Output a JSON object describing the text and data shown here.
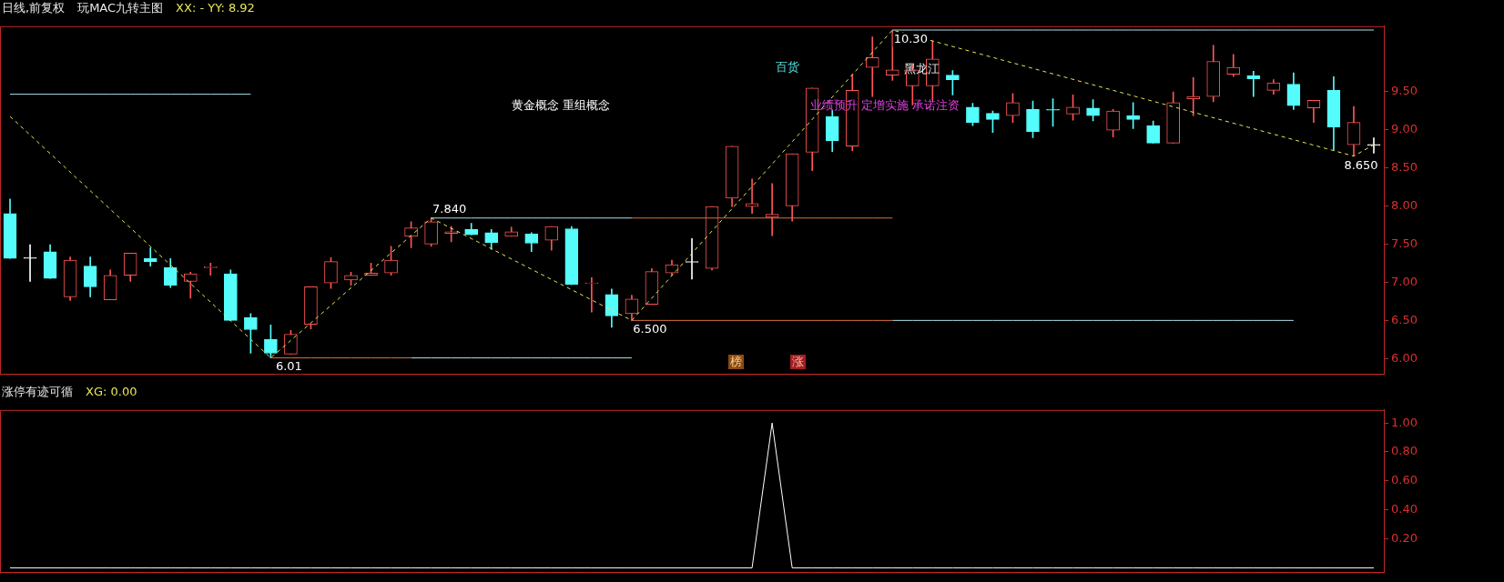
{
  "chart_data": [
    {
      "type": "candlestick",
      "title": "日线,前复权",
      "subtitle": "玩MAC九转主图",
      "annotations": [
        "XX: - YY: 8.92",
        "百货",
        "黄金概念 重组概念",
        "黑龙江",
        "业绩预升 定增实施 承诺注资",
        "榜",
        "涨",
        {
          "text": "10.30",
          "y": 10.3
        },
        {
          "text": "7.840",
          "y": 7.84
        },
        {
          "text": "6.01",
          "y": 6.01
        },
        {
          "text": "6.500",
          "y": 6.5
        },
        {
          "text": "8.650",
          "y": 8.65
        }
      ],
      "categories": [
        null,
        null,
        null,
        null,
        null,
        null,
        null,
        null,
        null,
        null,
        null,
        null,
        null,
        null,
        null,
        null,
        null,
        null,
        null,
        null,
        null,
        null,
        null,
        null,
        null,
        null,
        null,
        null,
        null,
        null,
        null,
        null,
        null,
        null,
        null,
        null,
        null,
        null,
        null,
        null,
        null,
        null,
        null,
        null,
        null,
        null,
        null,
        null,
        null,
        null,
        null,
        null,
        null,
        null,
        null,
        null,
        null,
        null,
        null,
        null,
        null,
        null,
        null,
        null,
        null,
        null,
        null,
        null,
        null
      ],
      "ohlc": [
        [
          7.9,
          8.09,
          7.31,
          7.31
        ],
        [
          7.31,
          7.49,
          7.01,
          7.31
        ],
        [
          7.4,
          7.49,
          7.05,
          7.05
        ],
        [
          6.81,
          7.33,
          6.76,
          7.29
        ],
        [
          7.21,
          7.33,
          6.81,
          6.94
        ],
        [
          6.77,
          7.16,
          6.77,
          7.09
        ],
        [
          7.09,
          7.38,
          7.01,
          7.38
        ],
        [
          7.31,
          7.45,
          7.21,
          7.27
        ],
        [
          7.19,
          7.31,
          6.93,
          6.96
        ],
        [
          7.01,
          7.13,
          6.79,
          7.11
        ],
        [
          7.19,
          7.25,
          7.09,
          7.2
        ],
        [
          7.11,
          7.16,
          6.5,
          6.5
        ],
        [
          6.54,
          6.59,
          6.07,
          6.38
        ],
        [
          6.25,
          6.44,
          6.01,
          6.07
        ],
        [
          6.06,
          6.37,
          6.06,
          6.32
        ],
        [
          6.45,
          6.94,
          6.39,
          6.94
        ],
        [
          6.99,
          7.32,
          6.92,
          7.27
        ],
        [
          7.03,
          7.13,
          6.96,
          7.09
        ],
        [
          7.09,
          7.25,
          7.09,
          7.12
        ],
        [
          7.12,
          7.47,
          7.09,
          7.29
        ],
        [
          7.6,
          7.79,
          7.45,
          7.71
        ],
        [
          7.5,
          7.84,
          7.47,
          7.79
        ],
        [
          7.64,
          7.73,
          7.53,
          7.66
        ],
        [
          7.69,
          7.77,
          7.62,
          7.62
        ],
        [
          7.65,
          7.69,
          7.43,
          7.52
        ],
        [
          7.6,
          7.72,
          7.6,
          7.66
        ],
        [
          7.63,
          7.65,
          7.4,
          7.51
        ],
        [
          7.55,
          7.73,
          7.42,
          7.73
        ],
        [
          7.7,
          7.73,
          6.97,
          6.97
        ],
        [
          6.98,
          7.06,
          6.61,
          6.99
        ],
        [
          6.84,
          6.91,
          6.41,
          6.56
        ],
        [
          6.59,
          6.83,
          6.5,
          6.78
        ],
        [
          6.71,
          7.18,
          6.71,
          7.14
        ],
        [
          7.12,
          7.29,
          7.09,
          7.23
        ],
        [
          7.26,
          7.57,
          7.04,
          7.26
        ],
        [
          7.18,
          7.99,
          7.16,
          7.99
        ],
        [
          8.1,
          8.78,
          7.99,
          8.78
        ],
        [
          7.99,
          8.35,
          7.9,
          8.03
        ],
        [
          7.85,
          8.29,
          7.61,
          7.89
        ],
        [
          8.0,
          8.68,
          7.8,
          8.68
        ],
        [
          8.7,
          9.54,
          8.46,
          9.54
        ],
        [
          9.17,
          9.25,
          8.71,
          8.85
        ],
        [
          8.78,
          9.72,
          8.72,
          9.51
        ],
        [
          9.81,
          10.21,
          9.43,
          9.94
        ],
        [
          9.71,
          10.3,
          9.64,
          9.78
        ],
        [
          9.57,
          9.84,
          9.32,
          9.78
        ],
        [
          9.57,
          10.16,
          9.38,
          9.92
        ],
        [
          9.71,
          9.77,
          9.45,
          9.65
        ],
        [
          9.29,
          9.34,
          9.05,
          9.09
        ],
        [
          9.21,
          9.24,
          8.96,
          9.13
        ],
        [
          9.18,
          9.47,
          9.09,
          9.35
        ],
        [
          9.26,
          9.37,
          8.89,
          8.97
        ],
        [
          9.26,
          9.4,
          9.04,
          9.25
        ],
        [
          9.2,
          9.45,
          9.12,
          9.29
        ],
        [
          9.28,
          9.39,
          9.11,
          9.18
        ],
        [
          8.99,
          9.26,
          8.9,
          9.24
        ],
        [
          9.18,
          9.35,
          9.01,
          9.13
        ],
        [
          9.05,
          9.11,
          8.82,
          8.82
        ],
        [
          8.82,
          9.49,
          8.82,
          9.35
        ],
        [
          9.4,
          9.68,
          9.18,
          9.43
        ],
        [
          9.43,
          10.1,
          9.36,
          9.89
        ],
        [
          9.72,
          9.98,
          9.69,
          9.81
        ],
        [
          9.7,
          9.76,
          9.43,
          9.66
        ],
        [
          9.51,
          9.65,
          9.46,
          9.61
        ],
        [
          9.59,
          9.74,
          9.26,
          9.31
        ],
        [
          9.28,
          9.38,
          9.09,
          9.38
        ],
        [
          9.51,
          9.69,
          8.73,
          9.03
        ],
        [
          8.8,
          9.3,
          8.65,
          9.09
        ],
        [
          8.79,
          8.89,
          8.69,
          8.79
        ]
      ],
      "colors": [
        "#54fcfc",
        "#ffffff",
        "#54fcfc",
        "#ff5454",
        "#54fcfc",
        "#ff5454",
        "#ff5454",
        "#54fcfc",
        "#54fcfc",
        "#ff5454",
        "#ff5454",
        "#54fcfc",
        "#54fcfc",
        "#54fcfc",
        "#ff5454",
        "#ff5454",
        "#ff5454",
        "#ff5454",
        "#ff5454",
        "#ff5454",
        "#ff5454",
        "#ff5454",
        "#ff5454",
        "#54fcfc",
        "#54fcfc",
        "#ff5454",
        "#54fcfc",
        "#ff5454",
        "#54fcfc",
        "#ff5454",
        "#54fcfc",
        "#ff5454",
        "#ff5454",
        "#ff5454",
        "#ffffff",
        "#ff5454",
        "#ff5454",
        "#ff5454",
        "#ff5454",
        "#ff5454",
        "#ff5454",
        "#54fcfc",
        "#ff5454",
        "#ff5454",
        "#ff5454",
        "#ff5454",
        "#ff5454",
        "#54fcfc",
        "#54fcfc",
        "#54fcfc",
        "#ff5454",
        "#54fcfc",
        "#54fcfc",
        "#ff5454",
        "#54fcfc",
        "#ff5454",
        "#54fcfc",
        "#54fcfc",
        "#ff5454",
        "#ff5454",
        "#ff5454",
        "#ff5454",
        "#54fcfc",
        "#ff5454",
        "#54fcfc",
        "#ff5454",
        "#54fcfc",
        "#ff5454",
        "#ffffff"
      ],
      "series": [
        {
          "type": "line",
          "color": "#e6e65a",
          "line_style": "dashed",
          "values": [
            9.17,
            null,
            null,
            null,
            null,
            null,
            null,
            null,
            null,
            null,
            null,
            null,
            null,
            6.01,
            null,
            null,
            null,
            null,
            null,
            null,
            null,
            7.84,
            null,
            null,
            null,
            null,
            null,
            null,
            null,
            null,
            null,
            6.5,
            null,
            null,
            null,
            null,
            null,
            null,
            null,
            null,
            null,
            null,
            null,
            null,
            10.3,
            null,
            null,
            null,
            null,
            null,
            null,
            null,
            null,
            null,
            null,
            null,
            null,
            null,
            null,
            null,
            null,
            null,
            null,
            null,
            null,
            null,
            null,
            8.65,
            8.8
          ]
        },
        {
          "type": "line",
          "color": "#a8e0e8",
          "values": [
            9.46,
            9.46,
            9.46,
            9.46,
            9.46,
            9.46,
            9.46,
            9.46,
            9.46,
            9.46,
            9.46,
            9.46,
            9.46,
            null,
            null,
            null,
            null,
            null,
            null,
            null,
            null,
            null,
            null,
            null,
            null,
            null,
            null,
            null,
            null,
            null,
            null,
            null,
            null,
            null,
            null,
            null,
            null,
            null,
            null,
            null,
            null,
            null,
            null,
            null,
            null,
            null,
            null,
            null,
            null,
            null,
            null,
            null,
            null,
            null,
            null,
            null,
            null,
            null,
            null,
            null,
            null,
            null,
            null,
            null,
            null,
            null,
            null,
            null,
            null
          ]
        },
        {
          "type": "line",
          "color": "#a8e0e8",
          "values": [
            null,
            null,
            null,
            null,
            null,
            null,
            null,
            null,
            null,
            null,
            null,
            null,
            null,
            null,
            null,
            null,
            null,
            null,
            null,
            null,
            null,
            7.84,
            7.84,
            7.84,
            7.84,
            7.84,
            7.84,
            7.84,
            7.84,
            7.84,
            7.84,
            7.84,
            null,
            null,
            null,
            null,
            null,
            null,
            null,
            null,
            null,
            null,
            null,
            null,
            null,
            null,
            null,
            null,
            null,
            null,
            null,
            null,
            null,
            null,
            null,
            null,
            null,
            null,
            null,
            null,
            null,
            null,
            null,
            null,
            null,
            null,
            null,
            null,
            null
          ]
        },
        {
          "type": "line",
          "color": "#d8703a",
          "values": [
            null,
            null,
            null,
            null,
            null,
            null,
            null,
            null,
            null,
            null,
            null,
            null,
            null,
            null,
            null,
            null,
            null,
            null,
            null,
            null,
            null,
            null,
            null,
            null,
            null,
            null,
            null,
            null,
            null,
            null,
            null,
            7.84,
            7.84,
            7.84,
            7.84,
            7.84,
            7.84,
            7.84,
            7.84,
            7.84,
            7.84,
            7.84,
            7.84,
            7.84,
            7.84,
            null,
            null,
            null,
            null,
            null,
            null,
            null,
            null,
            null,
            null,
            null,
            null,
            null,
            null,
            null,
            null,
            null,
            null,
            null,
            null,
            null,
            null,
            null,
            null
          ]
        },
        {
          "type": "line",
          "color": "#d8703a",
          "values": [
            null,
            null,
            null,
            null,
            null,
            null,
            null,
            null,
            null,
            null,
            null,
            null,
            null,
            6.01,
            6.01,
            6.01,
            6.01,
            6.01,
            6.01,
            6.01,
            6.01,
            null,
            null,
            null,
            null,
            null,
            null,
            null,
            null,
            null,
            null,
            null,
            null,
            null,
            null,
            null,
            null,
            null,
            null,
            null,
            null,
            null,
            null,
            null,
            null,
            null,
            null,
            null,
            null,
            null,
            null,
            null,
            null,
            null,
            null,
            null,
            null,
            null,
            null,
            null,
            null,
            null,
            null,
            null,
            null,
            null,
            null,
            null,
            null
          ]
        },
        {
          "type": "line",
          "color": "#a8e0e8",
          "values": [
            null,
            null,
            null,
            null,
            null,
            null,
            null,
            null,
            null,
            null,
            null,
            null,
            null,
            null,
            null,
            null,
            null,
            null,
            null,
            null,
            6.01,
            6.01,
            6.01,
            6.01,
            6.01,
            6.01,
            6.01,
            6.01,
            6.01,
            6.01,
            6.01,
            6.01,
            null,
            null,
            null,
            null,
            null,
            null,
            null,
            null,
            null,
            null,
            null,
            null,
            null,
            null,
            null,
            null,
            null,
            null,
            null,
            null,
            null,
            null,
            null,
            null,
            null,
            null,
            null,
            null,
            null,
            null,
            null,
            null,
            null,
            null,
            null,
            null,
            null
          ]
        },
        {
          "type": "line",
          "color": "#d8703a",
          "values": [
            null,
            null,
            null,
            null,
            null,
            null,
            null,
            null,
            null,
            null,
            null,
            null,
            null,
            null,
            null,
            null,
            null,
            null,
            null,
            null,
            null,
            null,
            null,
            null,
            null,
            null,
            null,
            null,
            null,
            null,
            null,
            6.5,
            6.5,
            6.5,
            6.5,
            6.5,
            6.5,
            6.5,
            6.5,
            6.5,
            6.5,
            6.5,
            6.5,
            6.5,
            6.5,
            null,
            null,
            null,
            null,
            null,
            null,
            null,
            null,
            null,
            null,
            null,
            null,
            null,
            null,
            null,
            null,
            null,
            null,
            null,
            null,
            null,
            null,
            null,
            null
          ]
        },
        {
          "type": "line",
          "color": "#a8e0e8",
          "values": [
            null,
            null,
            null,
            null,
            null,
            null,
            null,
            null,
            null,
            null,
            null,
            null,
            null,
            null,
            null,
            null,
            null,
            null,
            null,
            null,
            null,
            null,
            null,
            null,
            null,
            null,
            null,
            null,
            null,
            null,
            null,
            null,
            null,
            null,
            null,
            null,
            null,
            null,
            null,
            null,
            null,
            null,
            null,
            null,
            6.5,
            6.5,
            6.5,
            6.5,
            6.5,
            6.5,
            6.5,
            6.5,
            6.5,
            6.5,
            6.5,
            6.5,
            6.5,
            6.5,
            6.5,
            6.5,
            6.5,
            6.5,
            6.5,
            6.5,
            6.5,
            null,
            null,
            null,
            null
          ]
        },
        {
          "type": "line",
          "color": "#a8e0e8",
          "values": [
            null,
            null,
            null,
            null,
            null,
            null,
            null,
            null,
            null,
            null,
            null,
            null,
            null,
            null,
            null,
            null,
            null,
            null,
            null,
            null,
            null,
            null,
            null,
            null,
            null,
            null,
            null,
            null,
            null,
            null,
            null,
            null,
            null,
            null,
            null,
            null,
            null,
            null,
            null,
            null,
            null,
            null,
            null,
            null,
            10.3,
            10.3,
            10.3,
            10.3,
            10.3,
            10.3,
            10.3,
            10.3,
            10.3,
            10.3,
            10.3,
            10.3,
            10.3,
            10.3,
            10.3,
            10.3,
            10.3,
            10.3,
            10.3,
            10.3,
            10.3,
            10.3,
            10.3,
            10.3,
            10.3
          ]
        }
      ],
      "ylim": [
        5.8,
        10.35
      ],
      "yticks": [
        {
          "value": 6,
          "label": "6.00"
        },
        {
          "value": 6.5,
          "label": "6.50"
        },
        {
          "value": 7,
          "label": "7.00"
        },
        {
          "value": 7.5,
          "label": "7.50"
        },
        {
          "value": 8,
          "label": "8.00"
        },
        {
          "value": 8.5,
          "label": "8.50"
        },
        {
          "value": 9,
          "label": "9.00"
        },
        {
          "value": 9.5,
          "label": "9.50"
        }
      ],
      "tick_labels": "y"
    },
    {
      "type": "line",
      "title": "涨停有迹可循",
      "annotations": [
        "XG: 0.00"
      ],
      "categories": [
        null,
        null,
        null,
        null,
        null,
        null,
        null,
        null,
        null,
        null,
        null,
        null,
        null,
        null,
        null,
        null,
        null,
        null,
        null,
        null,
        null,
        null,
        null,
        null,
        null,
        null,
        null,
        null,
        null,
        null,
        null,
        null,
        null,
        null,
        null,
        null,
        null,
        null,
        null,
        null,
        null,
        null,
        null,
        null,
        null,
        null,
        null,
        null,
        null,
        null,
        null,
        null,
        null,
        null,
        null,
        null,
        null,
        null,
        null,
        null,
        null,
        null,
        null,
        null,
        null,
        null,
        null,
        null,
        null
      ],
      "series": [
        {
          "color": "#ffffff",
          "values": [
            0,
            0,
            0,
            0,
            0,
            0,
            0,
            0,
            0,
            0,
            0,
            0,
            0,
            0,
            0,
            0,
            0,
            0,
            0,
            0,
            0,
            0,
            0,
            0,
            0,
            0,
            0,
            0,
            0,
            0,
            0,
            0,
            0,
            0,
            0,
            0,
            0,
            0,
            1,
            0,
            0,
            0,
            0,
            0,
            0,
            0,
            0,
            0,
            0,
            0,
            0,
            0,
            0,
            0,
            0,
            0,
            0,
            0,
            0,
            0,
            0,
            0,
            0,
            0,
            0,
            0,
            0,
            0,
            0
          ]
        }
      ],
      "ylim": [
        -0.03,
        1.09
      ],
      "yticks": [
        {
          "value": 0.2,
          "label": "0.20"
        },
        {
          "value": 0.4,
          "label": "0.40"
        },
        {
          "value": 0.6,
          "label": "0.60"
        },
        {
          "value": 0.8,
          "label": "0.80"
        },
        {
          "value": 1,
          "label": "1.00"
        }
      ],
      "tick_labels": "y"
    }
  ]
}
